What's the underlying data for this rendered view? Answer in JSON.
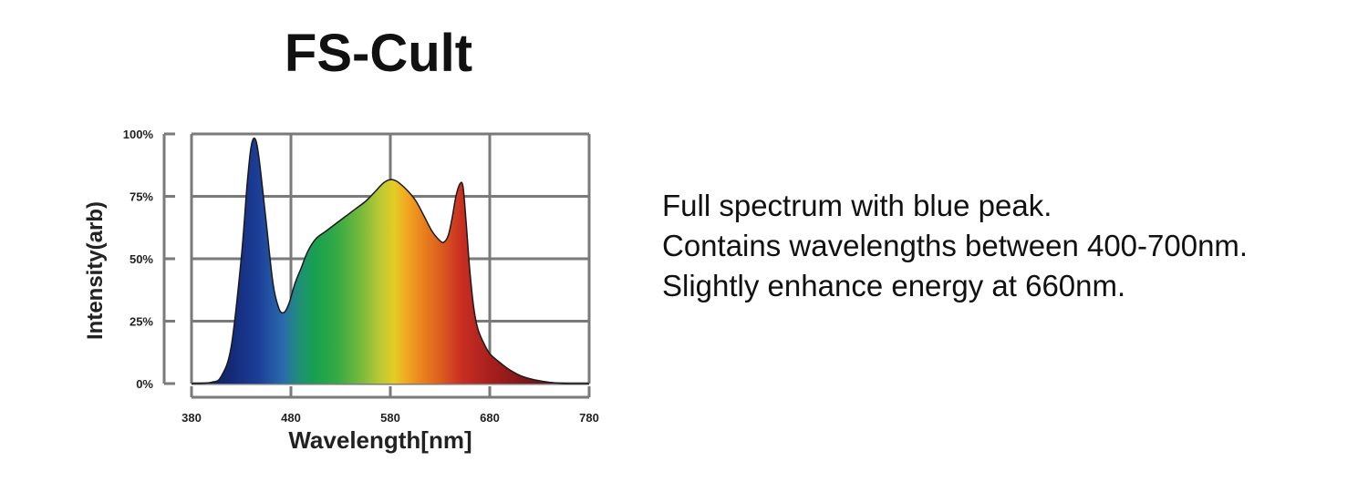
{
  "title": "FS-Cult",
  "description": {
    "lines": [
      "Full spectrum with blue peak.",
      "Contains wavelengths between 400-700nm.",
      "Slightly enhance energy at 660nm."
    ]
  },
  "chart_data": {
    "type": "area",
    "title": "FS-Cult",
    "xlabel": "Wavelength[nm]",
    "ylabel": "Intensity(arb)",
    "xlim": [
      380,
      780
    ],
    "ylim": [
      0,
      100
    ],
    "x_ticks": [
      380,
      480,
      580,
      680,
      780
    ],
    "x_tick_labels": [
      "380",
      "480",
      "580",
      "680",
      "780"
    ],
    "y_ticks": [
      0,
      25,
      50,
      75,
      100
    ],
    "y_tick_labels": [
      "0%",
      "25%",
      "50%",
      "75%",
      "100%"
    ],
    "grid": true,
    "legend": "none",
    "fill": "visible-spectrum gradient",
    "x": [
      380,
      400,
      410,
      420,
      430,
      436,
      440,
      444,
      448,
      455,
      462,
      468,
      473,
      478,
      484,
      490,
      497,
      505,
      515,
      525,
      535,
      545,
      555,
      565,
      572,
      578,
      584,
      590,
      598,
      606,
      614,
      622,
      628,
      633,
      638,
      642,
      646,
      650,
      653,
      656,
      660,
      664,
      668,
      673,
      680,
      690,
      700,
      712,
      725,
      740,
      760,
      780
    ],
    "y": [
      0,
      0.5,
      3,
      15,
      50,
      80,
      95,
      98,
      90,
      65,
      40,
      30,
      28.5,
      32,
      40,
      46,
      53,
      58,
      61,
      64,
      67,
      70,
      73,
      77,
      80,
      81.5,
      81.5,
      80,
      77,
      73,
      67,
      61,
      58,
      56.5,
      59,
      66,
      75,
      80,
      79,
      66,
      45,
      30,
      22,
      17,
      12,
      8.5,
      5.5,
      3,
      1.5,
      0.5,
      0,
      0
    ]
  }
}
